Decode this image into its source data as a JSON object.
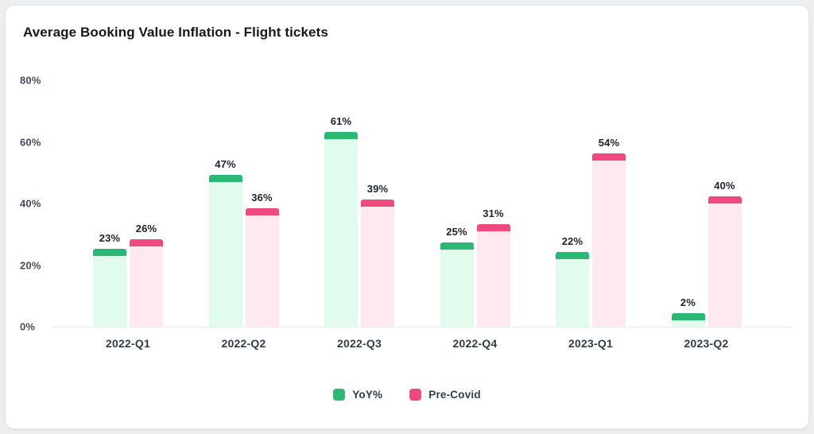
{
  "title": "Average Booking Value Inflation - Flight tickets",
  "colors": {
    "yoy_solid": "#2ab874",
    "yoy_light": "#e1fbec",
    "precovid_solid": "#ee4a7d",
    "precovid_light": "#ffe9f0",
    "axis_text": "#424b5c",
    "value_text": "#1d222e",
    "card_bg": "#ffffff",
    "page_bg": "#edeef0"
  },
  "chart_data": {
    "type": "bar",
    "title": "Average Booking Value Inflation - Flight tickets",
    "categories": [
      "2022-Q1",
      "2022-Q2",
      "2022-Q3",
      "2022-Q4",
      "2023-Q1",
      "2023-Q2"
    ],
    "series": [
      {
        "name": "YoY%",
        "color": "#2ab874",
        "color_light": "#e1fbec",
        "values": [
          23,
          47,
          61,
          25,
          22,
          2
        ]
      },
      {
        "name": "Pre-Covid",
        "color": "#ee4a7d",
        "color_light": "#ffe9f0",
        "values": [
          26,
          36,
          39,
          31,
          54,
          40
        ]
      }
    ],
    "value_labels": [
      [
        "23%",
        "47%",
        "61%",
        "25%",
        "22%",
        "2%"
      ],
      [
        "26%",
        "36%",
        "39%",
        "31%",
        "54%",
        "40%"
      ]
    ],
    "xlabel": "",
    "ylabel": "",
    "ylim": [
      0,
      80
    ],
    "yticks": [
      0,
      20,
      40,
      60,
      80
    ],
    "ytick_labels": [
      "0%",
      "20%",
      "40%",
      "60%",
      "80%"
    ],
    "grid": false,
    "legend_position": "bottom"
  },
  "legend": {
    "items": [
      {
        "label": "YoY%"
      },
      {
        "label": "Pre-Covid"
      }
    ]
  }
}
